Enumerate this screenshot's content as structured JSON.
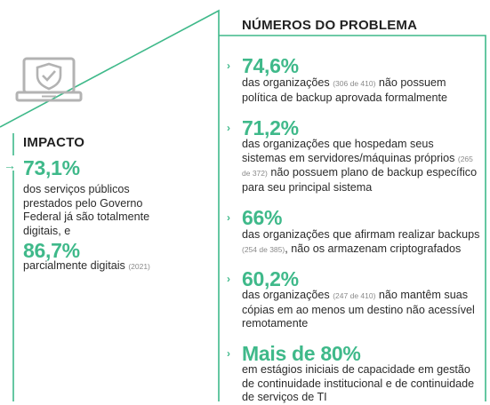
{
  "impact": {
    "title": "IMPACTO",
    "stat1_value": "73,1%",
    "stat1_text": "dos serviços públicos prestados pelo Governo Federal já são totalmente digitais, e",
    "stat2_value": "86,7%",
    "stat2_text": "parcialmente digitais",
    "stat2_note": "(2021)"
  },
  "problem": {
    "title": "NÚMEROS DO PROBLEMA",
    "items": [
      {
        "value": "74,6%",
        "pre": "das organizações",
        "note": "(306 de 410)",
        "post": "não possuem política de backup aprovada formalmente"
      },
      {
        "value": "71,2%",
        "pre": "das organizações que hospedam seus sistemas em servidores/máquinas próprios",
        "note": "(265 de 372)",
        "post": "não possuem plano de backup específico para seu principal sistema"
      },
      {
        "value": "66%",
        "pre": "das organizações que afirmam realizar backups",
        "note": "(254 de 385)",
        "post": ", não os armazenam criptografados"
      },
      {
        "value": "60,2%",
        "pre": "das organizações",
        "note": "(247 de 410)",
        "post": "não mantêm suas cópias em ao menos um destino não acessível remotamente"
      },
      {
        "value": "Mais de 80%",
        "pre": "em estágios iniciais de capacidade em gestão de continuidade institucional e de continuidade de serviços de TI",
        "note": "",
        "post": ""
      }
    ]
  },
  "colors": {
    "accent": "#3fb98a",
    "text": "#2b2b2b",
    "note": "#8a8a8a",
    "icon": "#b3b3b3"
  },
  "icons": {
    "laptop": "laptop-shield-icon",
    "bullet": "chevron-right-icon",
    "arrow": "arrow-right-icon"
  }
}
